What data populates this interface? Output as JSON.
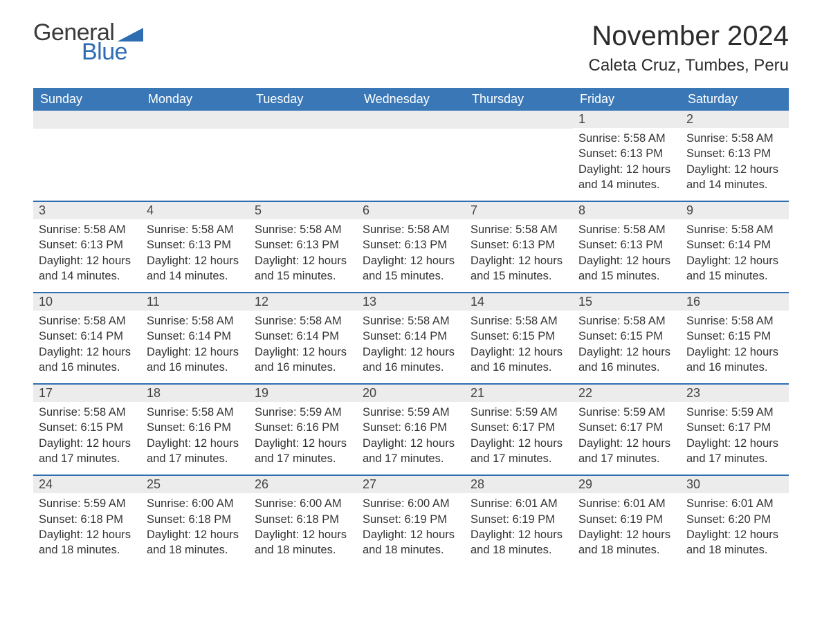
{
  "logo": {
    "word1": "General",
    "word2": "Blue"
  },
  "header": {
    "month_title": "November 2024",
    "location": "Caleta Cruz, Tumbes, Peru"
  },
  "colors": {
    "header_bg": "#3a77b7",
    "accent": "#2f6db3",
    "daynum_bg": "#ececec",
    "text": "#333333",
    "page_bg": "#ffffff"
  },
  "typography": {
    "title_fontsize": 40,
    "location_fontsize": 24,
    "dayhead_fontsize": 18,
    "body_fontsize": 16.5
  },
  "day_names": [
    "Sunday",
    "Monday",
    "Tuesday",
    "Wednesday",
    "Thursday",
    "Friday",
    "Saturday"
  ],
  "labels": {
    "sunrise": "Sunrise:",
    "sunset": "Sunset:",
    "daylight": "Daylight:"
  },
  "weeks": [
    [
      null,
      null,
      null,
      null,
      null,
      {
        "n": "1",
        "sunrise": "5:58 AM",
        "sunset": "6:13 PM",
        "daylight": "12 hours and 14 minutes."
      },
      {
        "n": "2",
        "sunrise": "5:58 AM",
        "sunset": "6:13 PM",
        "daylight": "12 hours and 14 minutes."
      }
    ],
    [
      {
        "n": "3",
        "sunrise": "5:58 AM",
        "sunset": "6:13 PM",
        "daylight": "12 hours and 14 minutes."
      },
      {
        "n": "4",
        "sunrise": "5:58 AM",
        "sunset": "6:13 PM",
        "daylight": "12 hours and 14 minutes."
      },
      {
        "n": "5",
        "sunrise": "5:58 AM",
        "sunset": "6:13 PM",
        "daylight": "12 hours and 15 minutes."
      },
      {
        "n": "6",
        "sunrise": "5:58 AM",
        "sunset": "6:13 PM",
        "daylight": "12 hours and 15 minutes."
      },
      {
        "n": "7",
        "sunrise": "5:58 AM",
        "sunset": "6:13 PM",
        "daylight": "12 hours and 15 minutes."
      },
      {
        "n": "8",
        "sunrise": "5:58 AM",
        "sunset": "6:13 PM",
        "daylight": "12 hours and 15 minutes."
      },
      {
        "n": "9",
        "sunrise": "5:58 AM",
        "sunset": "6:14 PM",
        "daylight": "12 hours and 15 minutes."
      }
    ],
    [
      {
        "n": "10",
        "sunrise": "5:58 AM",
        "sunset": "6:14 PM",
        "daylight": "12 hours and 16 minutes."
      },
      {
        "n": "11",
        "sunrise": "5:58 AM",
        "sunset": "6:14 PM",
        "daylight": "12 hours and 16 minutes."
      },
      {
        "n": "12",
        "sunrise": "5:58 AM",
        "sunset": "6:14 PM",
        "daylight": "12 hours and 16 minutes."
      },
      {
        "n": "13",
        "sunrise": "5:58 AM",
        "sunset": "6:14 PM",
        "daylight": "12 hours and 16 minutes."
      },
      {
        "n": "14",
        "sunrise": "5:58 AM",
        "sunset": "6:15 PM",
        "daylight": "12 hours and 16 minutes."
      },
      {
        "n": "15",
        "sunrise": "5:58 AM",
        "sunset": "6:15 PM",
        "daylight": "12 hours and 16 minutes."
      },
      {
        "n": "16",
        "sunrise": "5:58 AM",
        "sunset": "6:15 PM",
        "daylight": "12 hours and 16 minutes."
      }
    ],
    [
      {
        "n": "17",
        "sunrise": "5:58 AM",
        "sunset": "6:15 PM",
        "daylight": "12 hours and 17 minutes."
      },
      {
        "n": "18",
        "sunrise": "5:58 AM",
        "sunset": "6:16 PM",
        "daylight": "12 hours and 17 minutes."
      },
      {
        "n": "19",
        "sunrise": "5:59 AM",
        "sunset": "6:16 PM",
        "daylight": "12 hours and 17 minutes."
      },
      {
        "n": "20",
        "sunrise": "5:59 AM",
        "sunset": "6:16 PM",
        "daylight": "12 hours and 17 minutes."
      },
      {
        "n": "21",
        "sunrise": "5:59 AM",
        "sunset": "6:17 PM",
        "daylight": "12 hours and 17 minutes."
      },
      {
        "n": "22",
        "sunrise": "5:59 AM",
        "sunset": "6:17 PM",
        "daylight": "12 hours and 17 minutes."
      },
      {
        "n": "23",
        "sunrise": "5:59 AM",
        "sunset": "6:17 PM",
        "daylight": "12 hours and 17 minutes."
      }
    ],
    [
      {
        "n": "24",
        "sunrise": "5:59 AM",
        "sunset": "6:18 PM",
        "daylight": "12 hours and 18 minutes."
      },
      {
        "n": "25",
        "sunrise": "6:00 AM",
        "sunset": "6:18 PM",
        "daylight": "12 hours and 18 minutes."
      },
      {
        "n": "26",
        "sunrise": "6:00 AM",
        "sunset": "6:18 PM",
        "daylight": "12 hours and 18 minutes."
      },
      {
        "n": "27",
        "sunrise": "6:00 AM",
        "sunset": "6:19 PM",
        "daylight": "12 hours and 18 minutes."
      },
      {
        "n": "28",
        "sunrise": "6:01 AM",
        "sunset": "6:19 PM",
        "daylight": "12 hours and 18 minutes."
      },
      {
        "n": "29",
        "sunrise": "6:01 AM",
        "sunset": "6:19 PM",
        "daylight": "12 hours and 18 minutes."
      },
      {
        "n": "30",
        "sunrise": "6:01 AM",
        "sunset": "6:20 PM",
        "daylight": "12 hours and 18 minutes."
      }
    ]
  ]
}
